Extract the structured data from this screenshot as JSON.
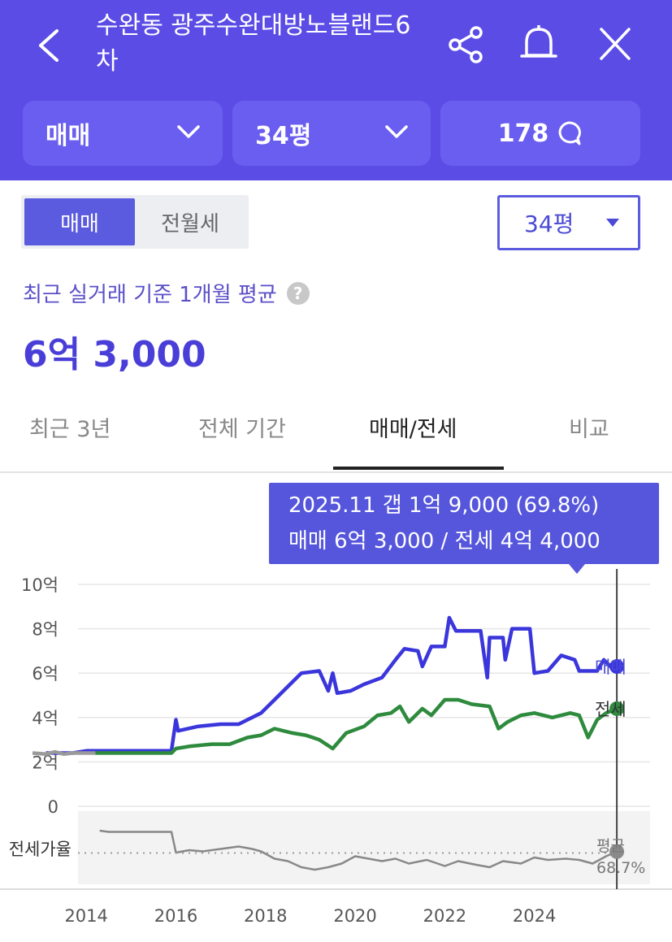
{
  "header": {
    "title": "수완동 광주수완대방노블랜드6차",
    "back_icon": "chevron-left-icon",
    "share_icon": "share-icon",
    "bell_icon": "bell-icon",
    "close_icon": "close-icon",
    "deal_chip": "매매",
    "size_chip": "34평",
    "comment_count": "178",
    "color": "#5b4ce6"
  },
  "segment": {
    "sale": "매매",
    "rent": "전월세",
    "selected": "매매"
  },
  "size_select": {
    "value": "34평"
  },
  "summary": {
    "label": "최근 실거래 기준 1개월 평균",
    "help": "?",
    "price": "6억 3,000"
  },
  "tabs": [
    {
      "label": "최근 3년"
    },
    {
      "label": "전체 기간"
    },
    {
      "label": "매매/전세",
      "selected": true
    },
    {
      "label": "비교"
    }
  ],
  "tooltip": {
    "line1": "2025.11  갭 1억 9,000 (69.8%)",
    "line2": "매매 6억 3,000 / 전세 4억 4,000"
  },
  "chart_data": {
    "type": "line",
    "y_unit": "억",
    "ylim": [
      0,
      10
    ],
    "y_ticks": [
      {
        "value": 10,
        "label": "10억"
      },
      {
        "value": 8,
        "label": "8억"
      },
      {
        "value": 6,
        "label": "6억"
      },
      {
        "value": 4,
        "label": "4억"
      },
      {
        "value": 2,
        "label": "2억"
      },
      {
        "value": 0,
        "label": "0"
      }
    ],
    "x_ticks": [
      "2014",
      "2016",
      "2018",
      "2020",
      "2022",
      "2024"
    ],
    "xlim": [
      2012.8,
      2026.4
    ],
    "series": [
      {
        "name": "매매",
        "color": "#3a36dc",
        "points": [
          [
            2013.1,
            2.4
          ],
          [
            2013.4,
            2.4
          ],
          [
            2013.7,
            2.4
          ],
          [
            2014.0,
            2.5
          ],
          [
            2014.5,
            2.5
          ],
          [
            2015.9,
            2.5
          ],
          [
            2016.0,
            3.9
          ],
          [
            2016.05,
            3.4
          ],
          [
            2016.5,
            3.6
          ],
          [
            2017.0,
            3.7
          ],
          [
            2017.4,
            3.7
          ],
          [
            2017.6,
            3.9
          ],
          [
            2017.9,
            4.2
          ],
          [
            2018.2,
            4.8
          ],
          [
            2018.5,
            5.4
          ],
          [
            2018.8,
            6.0
          ],
          [
            2019.2,
            6.1
          ],
          [
            2019.4,
            5.2
          ],
          [
            2019.5,
            6.0
          ],
          [
            2019.6,
            5.1
          ],
          [
            2019.9,
            5.2
          ],
          [
            2020.2,
            5.5
          ],
          [
            2020.6,
            5.8
          ],
          [
            2020.9,
            6.6
          ],
          [
            2021.1,
            7.1
          ],
          [
            2021.4,
            7.0
          ],
          [
            2021.5,
            6.3
          ],
          [
            2021.7,
            7.2
          ],
          [
            2022.0,
            7.2
          ],
          [
            2022.1,
            8.5
          ],
          [
            2022.25,
            7.9
          ],
          [
            2022.5,
            7.9
          ],
          [
            2022.8,
            7.9
          ],
          [
            2022.95,
            5.8
          ],
          [
            2023.0,
            7.6
          ],
          [
            2023.3,
            7.6
          ],
          [
            2023.35,
            6.6
          ],
          [
            2023.5,
            8.0
          ],
          [
            2023.9,
            8.0
          ],
          [
            2024.0,
            6.0
          ],
          [
            2024.3,
            6.1
          ],
          [
            2024.6,
            6.8
          ],
          [
            2024.9,
            6.6
          ],
          [
            2025.0,
            6.1
          ],
          [
            2025.4,
            6.1
          ],
          [
            2025.55,
            6.6
          ],
          [
            2025.7,
            6.3
          ],
          [
            2025.84,
            6.3
          ]
        ]
      },
      {
        "name": "전세",
        "color": "#2e8b3e",
        "points": [
          [
            2014.2,
            2.4
          ],
          [
            2015.9,
            2.4
          ],
          [
            2016.0,
            2.6
          ],
          [
            2016.3,
            2.7
          ],
          [
            2016.8,
            2.8
          ],
          [
            2017.2,
            2.8
          ],
          [
            2017.6,
            3.1
          ],
          [
            2017.9,
            3.2
          ],
          [
            2018.2,
            3.5
          ],
          [
            2018.6,
            3.3
          ],
          [
            2018.9,
            3.2
          ],
          [
            2019.2,
            3.0
          ],
          [
            2019.5,
            2.6
          ],
          [
            2019.8,
            3.3
          ],
          [
            2020.2,
            3.6
          ],
          [
            2020.5,
            4.1
          ],
          [
            2020.8,
            4.2
          ],
          [
            2021.0,
            4.5
          ],
          [
            2021.2,
            3.8
          ],
          [
            2021.5,
            4.4
          ],
          [
            2021.7,
            4.1
          ],
          [
            2022.0,
            4.8
          ],
          [
            2022.3,
            4.8
          ],
          [
            2022.6,
            4.6
          ],
          [
            2023.0,
            4.5
          ],
          [
            2023.2,
            3.5
          ],
          [
            2023.4,
            3.8
          ],
          [
            2023.7,
            4.1
          ],
          [
            2024.0,
            4.2
          ],
          [
            2024.4,
            4.0
          ],
          [
            2024.8,
            4.2
          ],
          [
            2025.0,
            4.1
          ],
          [
            2025.2,
            3.1
          ],
          [
            2025.4,
            3.9
          ],
          [
            2025.6,
            4.2
          ],
          [
            2025.84,
            4.4
          ]
        ]
      },
      {
        "name": "",
        "color": "#9a9a9a",
        "points": [
          [
            2012.8,
            2.4
          ],
          [
            2013.1,
            2.35
          ],
          [
            2013.3,
            2.45
          ],
          [
            2013.5,
            2.35
          ],
          [
            2013.7,
            2.4
          ],
          [
            2014.0,
            2.4
          ],
          [
            2014.2,
            2.4
          ]
        ]
      }
    ],
    "end_labels": [
      {
        "series": "매매",
        "text": "매매",
        "color": "#4a4ad6"
      },
      {
        "series": "전세",
        "text": "전세",
        "color": "#333333"
      }
    ],
    "ratio": {
      "label": "전세가율",
      "avg_label": "평균",
      "avg_value": "68.7%",
      "avg": 68.7,
      "ylim": [
        45,
        95
      ],
      "points": [
        [
          2014.3,
          87
        ],
        [
          2014.5,
          86
        ],
        [
          2015.9,
          86
        ],
        [
          2016.0,
          69
        ],
        [
          2016.3,
          71
        ],
        [
          2016.6,
          70
        ],
        [
          2017.0,
          72
        ],
        [
          2017.4,
          74
        ],
        [
          2017.7,
          72
        ],
        [
          2017.9,
          70
        ],
        [
          2018.2,
          64
        ],
        [
          2018.5,
          62
        ],
        [
          2018.8,
          57
        ],
        [
          2019.1,
          55
        ],
        [
          2019.4,
          57
        ],
        [
          2019.7,
          60
        ],
        [
          2020.0,
          66
        ],
        [
          2020.3,
          64
        ],
        [
          2020.6,
          62
        ],
        [
          2020.9,
          64
        ],
        [
          2021.2,
          60
        ],
        [
          2021.6,
          63
        ],
        [
          2022.0,
          58
        ],
        [
          2022.3,
          62
        ],
        [
          2022.7,
          59
        ],
        [
          2023.0,
          57
        ],
        [
          2023.3,
          62
        ],
        [
          2023.7,
          60
        ],
        [
          2024.0,
          65
        ],
        [
          2024.3,
          63
        ],
        [
          2024.7,
          64
        ],
        [
          2025.0,
          63
        ],
        [
          2025.3,
          60
        ],
        [
          2025.6,
          66
        ],
        [
          2025.84,
          69.8
        ]
      ]
    },
    "cursor_x": 2025.84,
    "legend_placement": "line-end-right",
    "grid": true
  }
}
